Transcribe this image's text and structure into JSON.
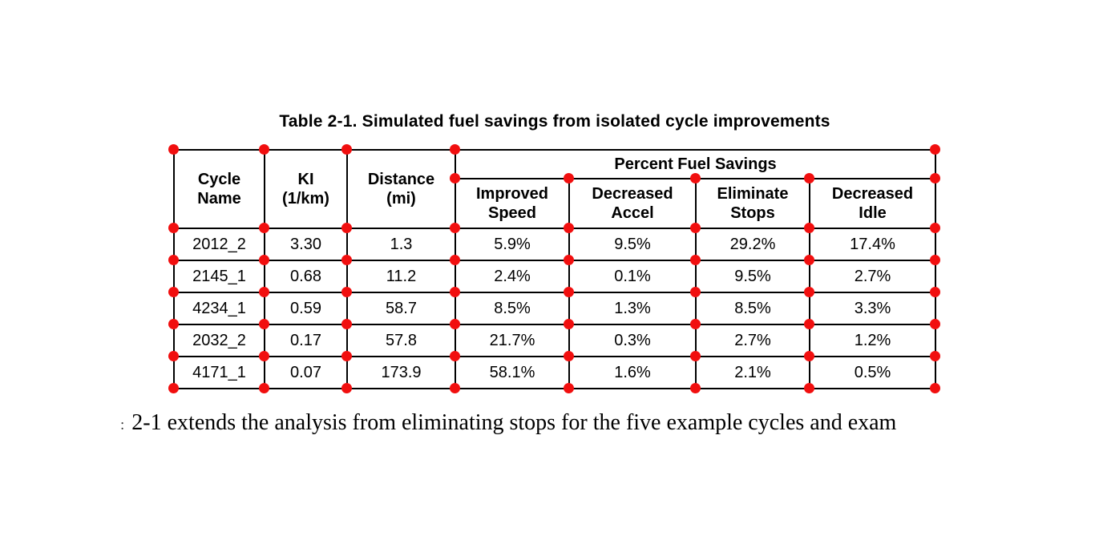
{
  "caption": "Table 2-1. Simulated fuel savings from isolated cycle improvements",
  "table": {
    "col_cycle": "Cycle\nName",
    "col_ki": "KI\n(1/km)",
    "col_distance": "Distance\n(mi)",
    "group_header": "Percent Fuel Savings",
    "col_speed": "Improved\nSpeed",
    "col_accel": "Decreased\nAccel",
    "col_stops": "Eliminate\nStops",
    "col_idle": "Decreased\nIdle",
    "rows": [
      [
        "2012_2",
        "3.30",
        "1.3",
        "5.9%",
        "9.5%",
        "29.2%",
        "17.4%"
      ],
      [
        "2145_1",
        "0.68",
        "11.2",
        "2.4%",
        "0.1%",
        "9.5%",
        "2.7%"
      ],
      [
        "4234_1",
        "0.59",
        "58.7",
        "8.5%",
        "1.3%",
        "8.5%",
        "3.3%"
      ],
      [
        "2032_2",
        "0.17",
        "57.8",
        "21.7%",
        "0.3%",
        "2.7%",
        "1.2%"
      ],
      [
        "4171_1",
        "0.07",
        "173.9",
        "58.1%",
        "1.6%",
        "2.1%",
        "0.5%"
      ]
    ]
  },
  "paragraph_fragment": ":",
  "paragraph": "2-1 extends the analysis from eliminating stops for the five example cycles and exam",
  "colors": {
    "dot": "#f10f0f",
    "line": "#000000",
    "text": "#000000",
    "background": "#ffffff"
  }
}
